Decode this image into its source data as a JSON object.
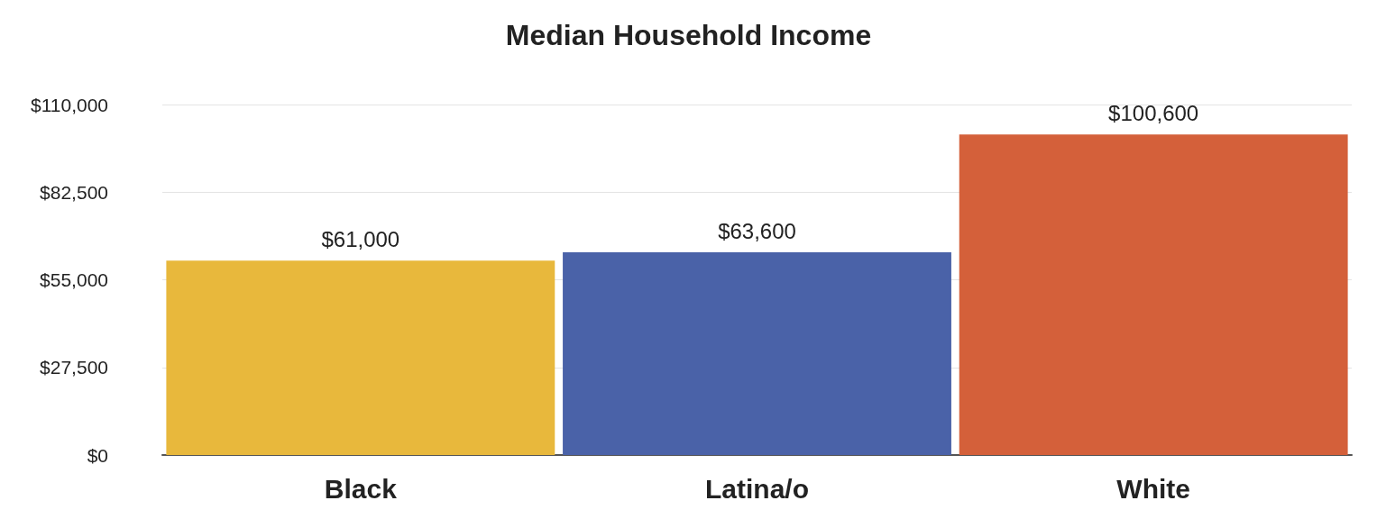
{
  "chart_data": {
    "type": "bar",
    "title": "Median Household Income",
    "categories": [
      "Black",
      "Latina/o",
      "White"
    ],
    "values": [
      61000,
      63600,
      100600
    ],
    "colors": [
      "#e8b83c",
      "#4a62a8",
      "#d4603a"
    ],
    "value_labels": [
      "$61,000",
      "$63,600",
      "$100,600"
    ],
    "ylim": [
      0,
      110000
    ],
    "yticks": [
      {
        "value": 0,
        "label": "$0"
      },
      {
        "value": 27500,
        "label": "$27,500"
      },
      {
        "value": 55000,
        "label": "$55,000"
      },
      {
        "value": 82500,
        "label": "$82,500"
      },
      {
        "value": 110000,
        "label": "$110,000"
      }
    ],
    "grid": "y"
  }
}
